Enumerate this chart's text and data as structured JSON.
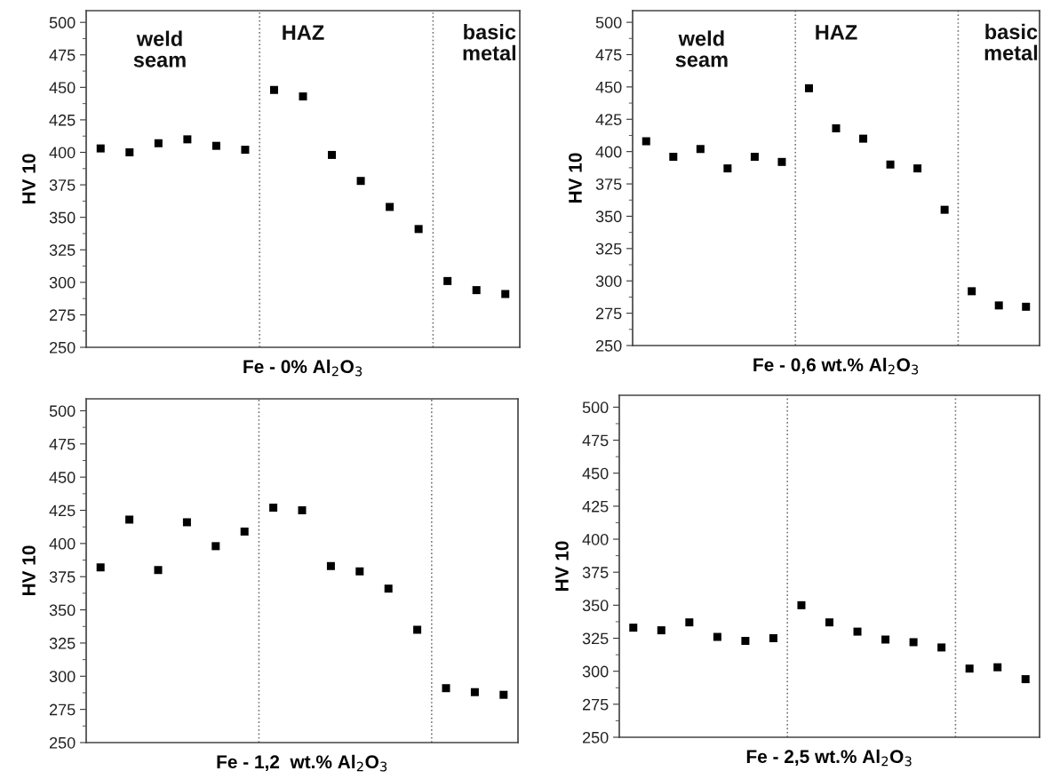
{
  "chart_data": [
    {
      "type": "scatter",
      "categories": [
        null,
        null,
        null,
        null,
        null,
        null,
        null,
        null,
        null,
        null,
        null,
        null,
        null,
        null,
        null
      ],
      "xlabel": "Fe - 0% Al$_{2}$O$_{3}$",
      "ylabel": "HV 10",
      "ylim": [
        250,
        509
      ],
      "yticks": [
        250,
        275,
        300,
        325,
        350,
        375,
        400,
        425,
        450,
        475,
        500
      ],
      "marker": "square",
      "grid": false,
      "tick_labels": "y",
      "series": [
        {
          "color": "#000000",
          "values": [
            403,
            400,
            407,
            410,
            405,
            402,
            448,
            443,
            398,
            378,
            358,
            341,
            301,
            294,
            291
          ]
        }
      ],
      "annotations": [
        "weld\nseam",
        "HAZ",
        "basic\nmetal"
      ]
    },
    {
      "type": "scatter",
      "categories": [
        null,
        null,
        null,
        null,
        null,
        null,
        null,
        null,
        null,
        null,
        null,
        null,
        null,
        null,
        null
      ],
      "xlabel": "Fe - 0,6 wt.% Al$_{2}$O$_{3}$",
      "ylabel": "HV 10",
      "ylim": [
        250,
        509
      ],
      "yticks": [
        250,
        275,
        300,
        325,
        350,
        375,
        400,
        425,
        450,
        475,
        500
      ],
      "marker": "square",
      "grid": false,
      "tick_labels": "y",
      "series": [
        {
          "color": "#000000",
          "values": [
            408,
            396,
            402,
            387,
            396,
            392,
            449,
            418,
            410,
            390,
            387,
            355,
            292,
            281,
            280
          ]
        }
      ],
      "annotations": [
        "weld\nseam",
        "HAZ",
        "basic\nmetal"
      ]
    },
    {
      "type": "scatter",
      "categories": [
        null,
        null,
        null,
        null,
        null,
        null,
        null,
        null,
        null,
        null,
        null,
        null,
        null,
        null,
        null
      ],
      "xlabel": "Fe - 1,2  wt.% Al$_{2}$O$_{3}$",
      "ylabel": "HV 10",
      "ylim": [
        250,
        509
      ],
      "yticks": [
        250,
        275,
        300,
        325,
        350,
        375,
        400,
        425,
        450,
        475,
        500
      ],
      "marker": "square",
      "grid": false,
      "tick_labels": "y",
      "series": [
        {
          "color": "#000000",
          "values": [
            382,
            418,
            380,
            416,
            398,
            409,
            427,
            425,
            383,
            379,
            366,
            335,
            291,
            288,
            286
          ]
        }
      ]
    },
    {
      "type": "scatter",
      "categories": [
        null,
        null,
        null,
        null,
        null,
        null,
        null,
        null,
        null,
        null,
        null,
        null,
        null,
        null,
        null
      ],
      "xlabel": "Fe - 2,5 wt.% Al$_{2}$O$_{3}$",
      "ylabel": "HV 10",
      "ylim": [
        250,
        509
      ],
      "yticks": [
        250,
        275,
        300,
        325,
        350,
        375,
        400,
        425,
        450,
        475,
        500
      ],
      "marker": "square",
      "grid": false,
      "tick_labels": "y",
      "series": [
        {
          "color": "#000000",
          "values": [
            333,
            331,
            337,
            326,
            323,
            325,
            350,
            337,
            330,
            324,
            322,
            318,
            302,
            303,
            294
          ]
        }
      ]
    }
  ]
}
